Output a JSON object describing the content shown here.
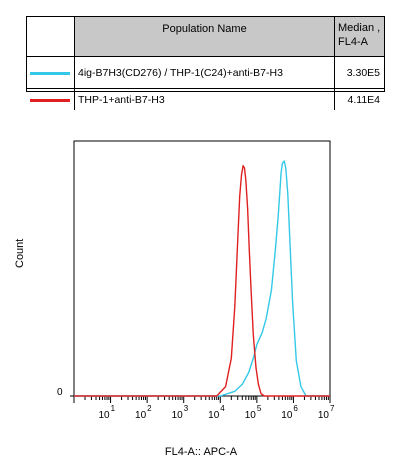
{
  "legend": {
    "header": {
      "name": "Population Name",
      "median": "Median ,\nFL4-A"
    },
    "rows": [
      {
        "name": "4ig-B7H3(CD276) / THP-1(C24)+anti-B7-H3",
        "median": "3.30E5",
        "color": "#33c8e8"
      },
      {
        "name": "THP-1+anti-B7-H3",
        "median": "4.11E4",
        "color": "#e02020"
      }
    ]
  },
  "chart_data": {
    "type": "line",
    "x_scale": "log",
    "xlim": [
      1,
      10000000
    ],
    "ylim": [
      0,
      1
    ],
    "xlabel": "FL4-A:: APC-A",
    "ylabel": "Count",
    "ytick_labels": [
      "0"
    ],
    "xtick_labels": [
      {
        "base": "10",
        "exp": "1"
      },
      {
        "base": "10",
        "exp": "2"
      },
      {
        "base": "10",
        "exp": "3"
      },
      {
        "base": "10",
        "exp": "4"
      },
      {
        "base": "10",
        "exp": "5"
      },
      {
        "base": "10",
        "exp": "6"
      },
      {
        "base": "10",
        "exp": "7"
      }
    ],
    "series": [
      {
        "name": "4ig-B7H3(CD276) / THP-1(C24)+anti-B7-H3",
        "color": "#33c8e8",
        "x": [
          1,
          10000,
          25000,
          40000,
          60000,
          80000,
          100000,
          140000,
          180000,
          250000,
          320000,
          380000,
          420000,
          460000,
          500000,
          560000,
          620000,
          700000,
          800000,
          950000,
          1200000,
          1600000,
          2200000,
          10000000
        ],
        "y": [
          0,
          0,
          0.02,
          0.05,
          0.1,
          0.16,
          0.22,
          0.27,
          0.33,
          0.45,
          0.62,
          0.76,
          0.86,
          0.95,
          0.99,
          1.0,
          0.97,
          0.86,
          0.66,
          0.4,
          0.15,
          0.04,
          0,
          0
        ]
      },
      {
        "name": "THP-1+anti-B7-H3",
        "color": "#e02020",
        "x": [
          1,
          8000,
          14000,
          20000,
          25000,
          30000,
          34000,
          38000,
          42000,
          46000,
          50000,
          56000,
          62000,
          70000,
          80000,
          95000,
          110000,
          130000,
          160000,
          10000000
        ],
        "y": [
          0,
          0,
          0.04,
          0.16,
          0.38,
          0.66,
          0.85,
          0.94,
          0.98,
          0.97,
          0.92,
          0.8,
          0.62,
          0.44,
          0.26,
          0.12,
          0.05,
          0.01,
          0,
          0
        ]
      }
    ]
  }
}
